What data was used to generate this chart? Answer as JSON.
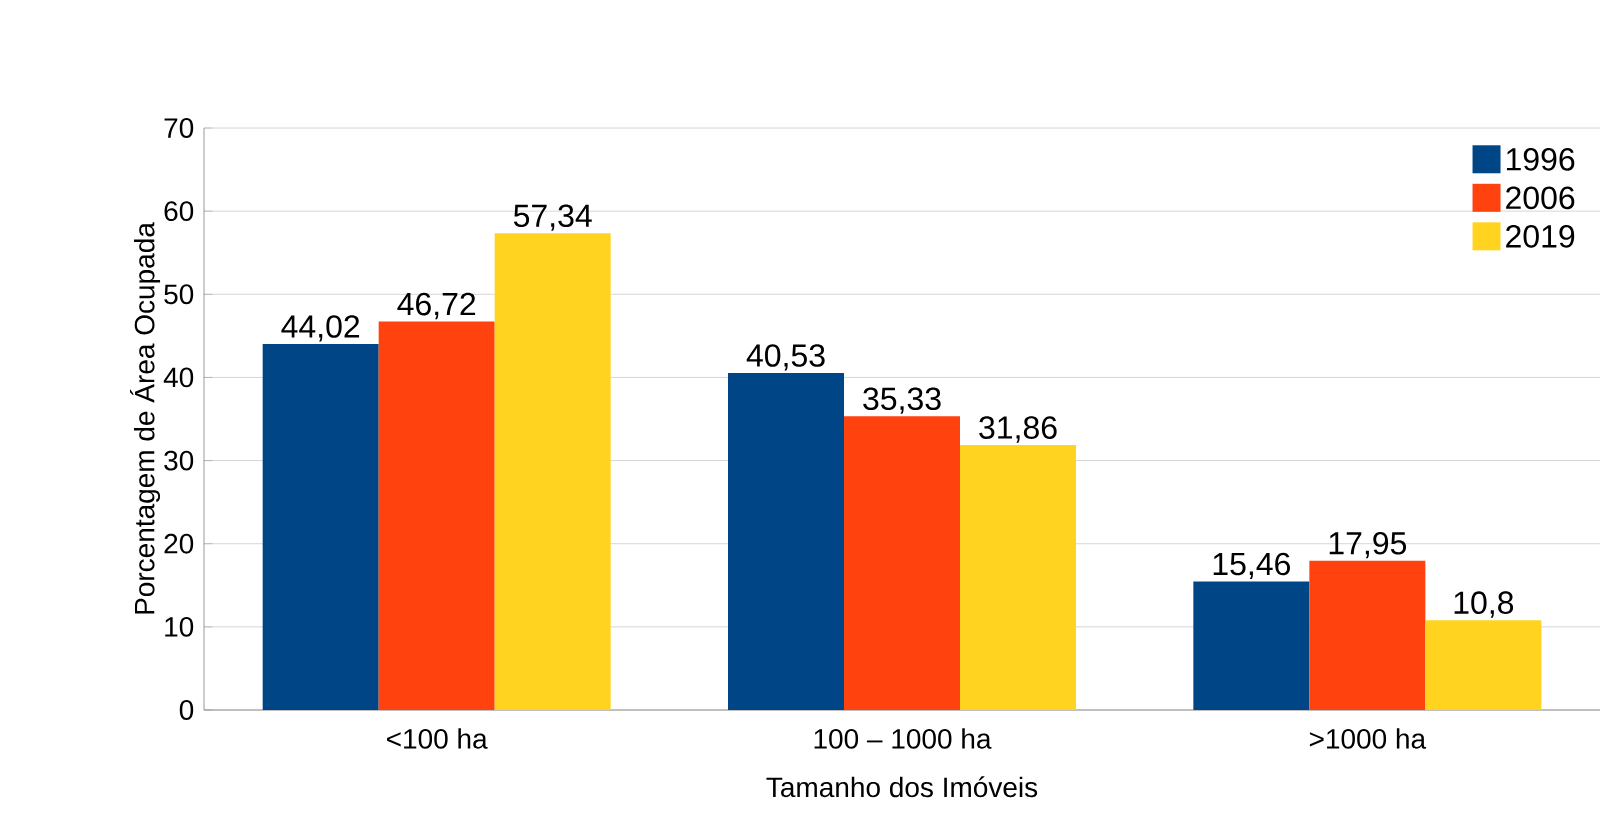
{
  "chart_data": {
    "type": "bar",
    "xlabel": "Tamanho dos Imóveis",
    "ylabel": "Porcentagem de Área Ocupada",
    "categories": [
      "<100 ha",
      "100 – 1000 ha",
      ">1000 ha"
    ],
    "series": [
      {
        "name": "1996",
        "color": "#004586",
        "values": [
          44.02,
          40.53,
          15.46
        ],
        "value_labels": [
          "44,02",
          "40,53",
          "15,46"
        ]
      },
      {
        "name": "2006",
        "color": "#ff420e",
        "values": [
          46.72,
          35.33,
          17.95
        ],
        "value_labels": [
          "46,72",
          "35,33",
          "17,95"
        ]
      },
      {
        "name": "2019",
        "color": "#ffd320",
        "values": [
          57.34,
          31.86,
          10.8
        ],
        "value_labels": [
          "57,34",
          "31,86",
          "10,8"
        ]
      }
    ],
    "ylim": [
      0,
      70
    ],
    "yticks": [
      0,
      10,
      20,
      30,
      40,
      50,
      60,
      70
    ],
    "grid": "y",
    "legend": "top right"
  }
}
